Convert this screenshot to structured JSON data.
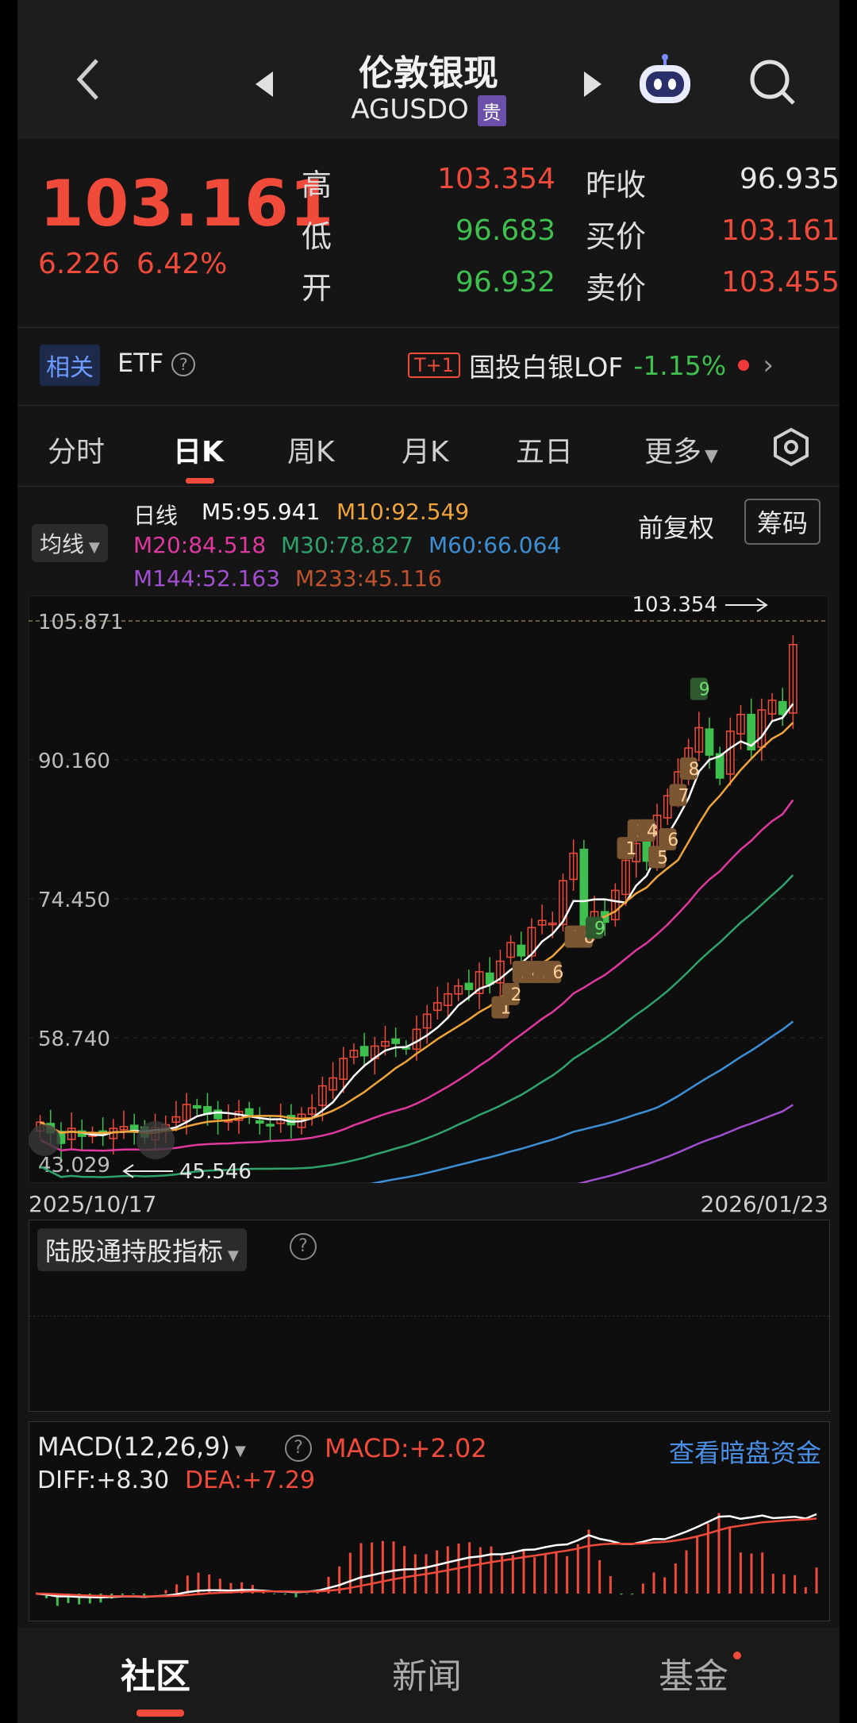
{
  "header": {
    "title": "伦敦银现",
    "code": "AGUSDO",
    "tag": "贵"
  },
  "quote": {
    "price": "103.161",
    "change": "6.226",
    "change_pct": "6.42%",
    "high_label": "高",
    "high": "103.354",
    "low_label": "低",
    "low": "96.683",
    "open_label": "开",
    "open": "96.932",
    "prev_label": "昨收",
    "prev": "96.935",
    "bid_label": "买价",
    "bid": "103.161",
    "ask_label": "卖价",
    "ask": "103.455"
  },
  "related": {
    "badge": "相关",
    "etf": "ETF",
    "tplus": "T+1",
    "fund": "国投白银LOF",
    "fund_change": "-1.15%"
  },
  "tabs": [
    "分时",
    "日K",
    "周K",
    "月K",
    "五日",
    "更多"
  ],
  "ma": {
    "selector": "均线",
    "label": "日线",
    "m5": "M5:95.941",
    "m10": "M10:92.549",
    "m20": "M20:84.518",
    "m30": "M30:78.827",
    "m60": "M60:66.064",
    "m144": "M144:52.163",
    "m233": "M233:45.116",
    "adjust": "前复权",
    "chips": "筹码"
  },
  "chart_data": {
    "type": "candlestick",
    "y_ticks": [
      "105.871",
      "90.160",
      "74.450",
      "58.740",
      "43.029"
    ],
    "ylim": [
      43.029,
      105.871
    ],
    "start_date": "2025/10/17",
    "end_date": "2026/01/23",
    "high_marker": "103.354",
    "low_marker": "45.546",
    "signal_labels": [
      "1",
      "2",
      "3",
      "4",
      "5",
      "6",
      "7",
      "8",
      "9",
      "1",
      "23",
      "4",
      "5",
      "6",
      "7",
      "8",
      "9"
    ],
    "close": [
      49.2,
      48.0,
      46.8,
      48.5,
      47.6,
      47.9,
      47.8,
      48.5,
      48.7,
      48.2,
      47.5,
      48.6,
      48.9,
      49.8,
      51.2,
      50.8,
      50.1,
      49.6,
      49.4,
      50.4,
      49.8,
      49.1,
      48.9,
      49.5,
      48.9,
      50.1,
      50.8,
      53.3,
      54.2,
      56.4,
      57.3,
      56.7,
      57.8,
      58.3,
      58.1,
      57.6,
      59.7,
      61.4,
      62.7,
      63.7,
      64.6,
      64.2,
      66.2,
      64.8,
      67.4,
      69.5,
      68.0,
      71.2,
      72.0,
      71.7,
      76.5,
      79.6,
      71.1,
      73.0,
      71.8,
      75.4,
      78.8,
      80.7,
      78.7,
      83.9,
      86.1,
      88.8,
      91.5,
      93.8,
      90.7,
      88.1,
      93.4,
      95.3,
      91.3,
      95.8,
      96.9,
      95.3,
      103.2
    ]
  },
  "indicator": {
    "selector": "陆股通持股指标"
  },
  "macd": {
    "selector": "MACD(12,26,9)",
    "macd": "MACD:+2.02",
    "diff": "DIFF:+8.30",
    "dea": "DEA:+7.29",
    "link": "查看暗盘资金"
  },
  "bottom_nav": [
    "社区",
    "新闻",
    "基金"
  ],
  "colors": {
    "up": "#f04a3b",
    "down": "#3fbf4e",
    "m5": "#ffffff",
    "m10": "#f0a43a",
    "m20": "#e0389e",
    "m30": "#2fa36b",
    "m60": "#3d8fd6",
    "m144": "#a14fd0",
    "m233": "#c0532e"
  }
}
